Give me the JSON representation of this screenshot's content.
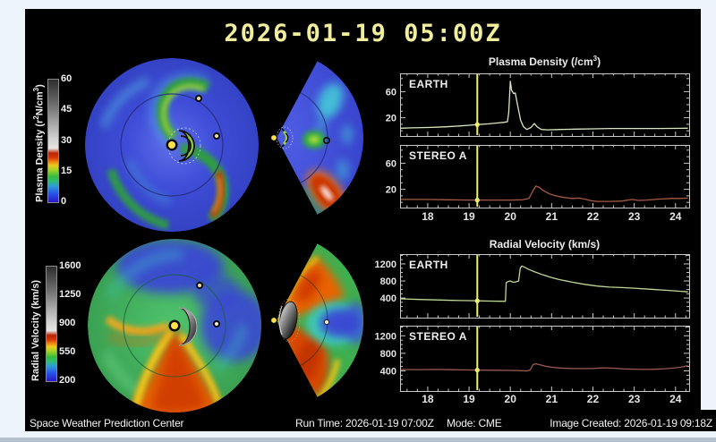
{
  "header": {
    "title": "2026-01-19 05:00Z",
    "color": "#f1ee9d"
  },
  "footer": {
    "left": "Space Weather Prediction Center",
    "run_time": "Run Time: 2026-01-19 07:00Z",
    "mode": "Mode: CME",
    "image_created": "Image Created: 2026-01-19 09:18Z"
  },
  "page": {
    "background": "#edf4fb",
    "panel_background": "#000000",
    "bottom_strip_color": "#b4c1ce"
  },
  "colorbars": [
    {
      "id": "density",
      "label_parts": [
        [
          "t",
          "Plasma Density (r"
        ],
        [
          "sup",
          "2"
        ],
        [
          "t",
          "N/cm"
        ],
        [
          "sup",
          "3"
        ],
        [
          "t",
          ")"
        ]
      ],
      "min": 0,
      "max": 60,
      "ticks": [
        0,
        15,
        30,
        45,
        60
      ]
    },
    {
      "id": "velocity",
      "label_parts": [
        [
          "t",
          "Radial Velocity (km/s)"
        ]
      ],
      "min": 200,
      "max": 1600,
      "ticks": [
        200,
        550,
        900,
        1250,
        1600
      ]
    }
  ],
  "colormap_stops": [
    [
      0,
      "#2a17c8"
    ],
    [
      7,
      "#2553e8"
    ],
    [
      13,
      "#2e9bd8"
    ],
    [
      17,
      "#2fbb7a"
    ],
    [
      21,
      "#35bb3c"
    ],
    [
      26,
      "#9ed32a"
    ],
    [
      30,
      "#eecb1d"
    ],
    [
      33,
      "#ee8612"
    ],
    [
      36,
      "#d83a0a"
    ],
    [
      40,
      "#b82405"
    ],
    [
      44,
      "#e8e5e2"
    ],
    [
      52,
      "#d2d2d2"
    ],
    [
      64,
      "#a8a8a8"
    ],
    [
      80,
      "#6c6c6c"
    ],
    [
      100,
      "#2e2e2e"
    ]
  ],
  "chart_data": {
    "density": {
      "type": "line",
      "title_text": "Plasma Density (/cm3)",
      "title_parts": [
        [
          "t",
          "Plasma Density (/cm"
        ],
        [
          "sup",
          "3"
        ],
        [
          "t",
          ")"
        ]
      ],
      "xlim": [
        17.33,
        24.33
      ],
      "xticks": [
        18,
        19,
        20,
        21,
        22,
        23,
        24
      ],
      "ylim": [
        -8,
        88
      ],
      "yticks": [
        20,
        60
      ],
      "yminor": [
        0,
        10,
        30,
        40,
        50,
        70,
        80
      ],
      "marker_x": 19.2,
      "marker_color": "#f2ef6e",
      "panels": [
        {
          "label": "EARTH",
          "color": "#d7e7bd",
          "points": [
            [
              17.35,
              4
            ],
            [
              17.6,
              4.5
            ],
            [
              18.0,
              5
            ],
            [
              18.4,
              6
            ],
            [
              18.8,
              7.5
            ],
            [
              19.0,
              8.5
            ],
            [
              19.2,
              9.5
            ],
            [
              19.45,
              10.5
            ],
            [
              19.7,
              12
            ],
            [
              19.85,
              13
            ],
            [
              19.93,
              14
            ],
            [
              19.96,
              28
            ],
            [
              20.0,
              76
            ],
            [
              20.03,
              62
            ],
            [
              20.08,
              57
            ],
            [
              20.12,
              58
            ],
            [
              20.18,
              38
            ],
            [
              20.25,
              16
            ],
            [
              20.32,
              6
            ],
            [
              20.4,
              2
            ],
            [
              20.5,
              5
            ],
            [
              20.58,
              11
            ],
            [
              20.65,
              6
            ],
            [
              20.75,
              2
            ],
            [
              20.9,
              1.5
            ],
            [
              21.2,
              2
            ],
            [
              21.6,
              2.5
            ],
            [
              22.0,
              3
            ],
            [
              22.4,
              3.5
            ],
            [
              23.0,
              3.5
            ],
            [
              23.6,
              3.5
            ],
            [
              24.3,
              4
            ]
          ]
        },
        {
          "label": "STEREO A",
          "color": "#a85a46",
          "points": [
            [
              17.35,
              4.5
            ],
            [
              18.0,
              4.5
            ],
            [
              18.5,
              4
            ],
            [
              19.0,
              3.5
            ],
            [
              19.2,
              3.5
            ],
            [
              19.6,
              3.5
            ],
            [
              20.0,
              3.5
            ],
            [
              20.3,
              4
            ],
            [
              20.45,
              6
            ],
            [
              20.55,
              18
            ],
            [
              20.62,
              25
            ],
            [
              20.7,
              23
            ],
            [
              20.8,
              18
            ],
            [
              20.95,
              13
            ],
            [
              21.1,
              10
            ],
            [
              21.3,
              7.5
            ],
            [
              21.5,
              6
            ],
            [
              21.65,
              6.5
            ],
            [
              21.8,
              5
            ],
            [
              21.95,
              2.5
            ],
            [
              22.1,
              1.5
            ],
            [
              22.4,
              1.5
            ],
            [
              22.7,
              2
            ],
            [
              22.95,
              4.5
            ],
            [
              23.1,
              3
            ],
            [
              23.3,
              3.5
            ],
            [
              23.6,
              5
            ],
            [
              23.9,
              6
            ],
            [
              24.1,
              6
            ],
            [
              24.3,
              6.5
            ]
          ]
        }
      ]
    },
    "velocity": {
      "type": "line",
      "title_text": "Radial Velocity (km/s)",
      "title_parts": [
        [
          "t",
          "Radial Velocity (km/s)"
        ]
      ],
      "xlim": [
        17.33,
        24.33
      ],
      "xticks": [
        18,
        19,
        20,
        21,
        22,
        23,
        24
      ],
      "ylim": [
        -60,
        1430
      ],
      "yticks": [
        400,
        800,
        1200
      ],
      "yminor": [
        100,
        200,
        300,
        500,
        600,
        700,
        900,
        1000,
        1100,
        1300,
        1400
      ],
      "marker_x": 19.2,
      "marker_color": "#f2ef6e",
      "panels": [
        {
          "label": "EARTH",
          "color": "#bcd996",
          "points": [
            [
              17.35,
              380
            ],
            [
              17.8,
              365
            ],
            [
              18.2,
              355
            ],
            [
              18.6,
              345
            ],
            [
              19.0,
              338
            ],
            [
              19.2,
              334
            ],
            [
              19.5,
              328
            ],
            [
              19.75,
              325
            ],
            [
              19.88,
              324
            ],
            [
              19.9,
              760
            ],
            [
              19.95,
              790
            ],
            [
              20.0,
              800
            ],
            [
              20.05,
              775
            ],
            [
              20.1,
              770
            ],
            [
              20.15,
              782
            ],
            [
              20.2,
              800
            ],
            [
              20.24,
              1100
            ],
            [
              20.28,
              1150
            ],
            [
              20.35,
              1120
            ],
            [
              20.45,
              1070
            ],
            [
              20.6,
              1010
            ],
            [
              20.8,
              940
            ],
            [
              21.0,
              880
            ],
            [
              21.2,
              830
            ],
            [
              21.5,
              770
            ],
            [
              21.8,
              720
            ],
            [
              22.1,
              680
            ],
            [
              22.4,
              655
            ],
            [
              22.7,
              645
            ],
            [
              23.0,
              630
            ],
            [
              23.4,
              605
            ],
            [
              23.8,
              580
            ],
            [
              24.1,
              560
            ],
            [
              24.3,
              545
            ]
          ]
        },
        {
          "label": "STEREO A",
          "color": "#9a5a50",
          "points": [
            [
              17.35,
              430
            ],
            [
              17.8,
              428
            ],
            [
              18.2,
              432
            ],
            [
              18.6,
              425
            ],
            [
              19.0,
              420
            ],
            [
              19.2,
              418
            ],
            [
              19.6,
              414
            ],
            [
              20.0,
              410
            ],
            [
              20.2,
              405
            ],
            [
              20.4,
              398
            ],
            [
              20.48,
              420
            ],
            [
              20.55,
              545
            ],
            [
              20.62,
              560
            ],
            [
              20.72,
              535
            ],
            [
              20.85,
              505
            ],
            [
              21.0,
              482
            ],
            [
              21.2,
              465
            ],
            [
              21.45,
              455
            ],
            [
              21.7,
              450
            ],
            [
              22.0,
              455
            ],
            [
              22.25,
              468
            ],
            [
              22.5,
              460
            ],
            [
              22.75,
              445
            ],
            [
              23.0,
              438
            ],
            [
              23.25,
              432
            ],
            [
              23.5,
              436
            ],
            [
              23.75,
              448
            ],
            [
              24.0,
              468
            ],
            [
              24.15,
              490
            ],
            [
              24.3,
              520
            ]
          ]
        }
      ]
    }
  }
}
